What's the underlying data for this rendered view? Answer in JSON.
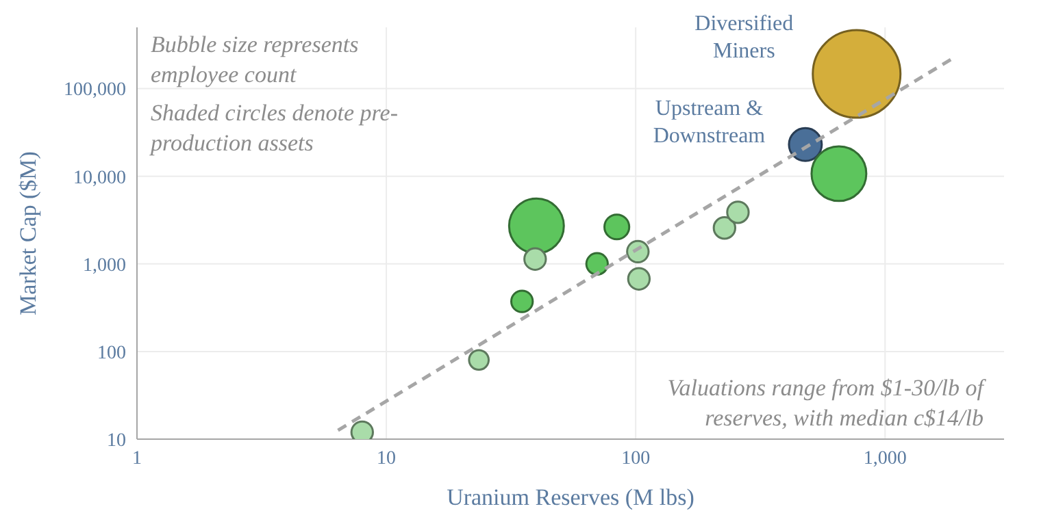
{
  "chart_data": {
    "type": "bubble",
    "xlabel": "Uranium Reserves (M lbs)",
    "ylabel": "Market Cap ($M)",
    "log": "xy",
    "grid": true,
    "xlim": [
      1,
      3000
    ],
    "xticks": [
      1,
      10,
      100,
      {
        "value": 1000,
        "label": "1,000"
      }
    ],
    "ylim": [
      10,
      500000
    ],
    "yticks": [
      10,
      100,
      {
        "value": 1000,
        "label": "1,000"
      },
      {
        "value": 10000,
        "label": "10,000"
      },
      {
        "value": 100000,
        "label": "100,000"
      }
    ],
    "series": [
      {
        "x": [
          8,
          23.5,
          35,
          40,
          39.5,
          70,
          84,
          102,
          103,
          227,
          257,
          479,
          653,
          769
        ],
        "values": [
          12,
          80,
          373,
          2710,
          1135,
          1000,
          2640,
          1380,
          674,
          2570,
          3880,
          23000,
          10700,
          147000
        ],
        "sizes": [
          0.06,
          0.05,
          0.06,
          0.39,
          0.06,
          0.06,
          0.08,
          0.06,
          0.06,
          0.06,
          0.06,
          0.14,
          0.39,
          1
        ],
        "colors": [
          "#a9dca9",
          "#a9dca9",
          "#5dc55d",
          "#5dc55d",
          "#a9dca9",
          "#5dc55d",
          "#5dc55d",
          "#a9dca9",
          "#a9dca9",
          "#a9dca9",
          "#a9dca9",
          "#4a6f98",
          "#5dc55d",
          "#d4ae3b"
        ]
      },
      {
        "type": "line",
        "x": [
          6.4,
          1850
        ],
        "values": [
          12.6,
          218000
        ],
        "color": "#a6a6a6",
        "line_style": "dashed"
      }
    ],
    "annotations": [
      "Bubble size represents employee count",
      "Shaded circles denote pre-production assets",
      "Valuations range from $1-30/lb of reserves, with median c$14/lb",
      {
        "text": "Diversified Miners",
        "x": 769,
        "y": 147000
      },
      {
        "text": "Upstream & Downstream",
        "x": 479,
        "y": 23000
      }
    ]
  }
}
